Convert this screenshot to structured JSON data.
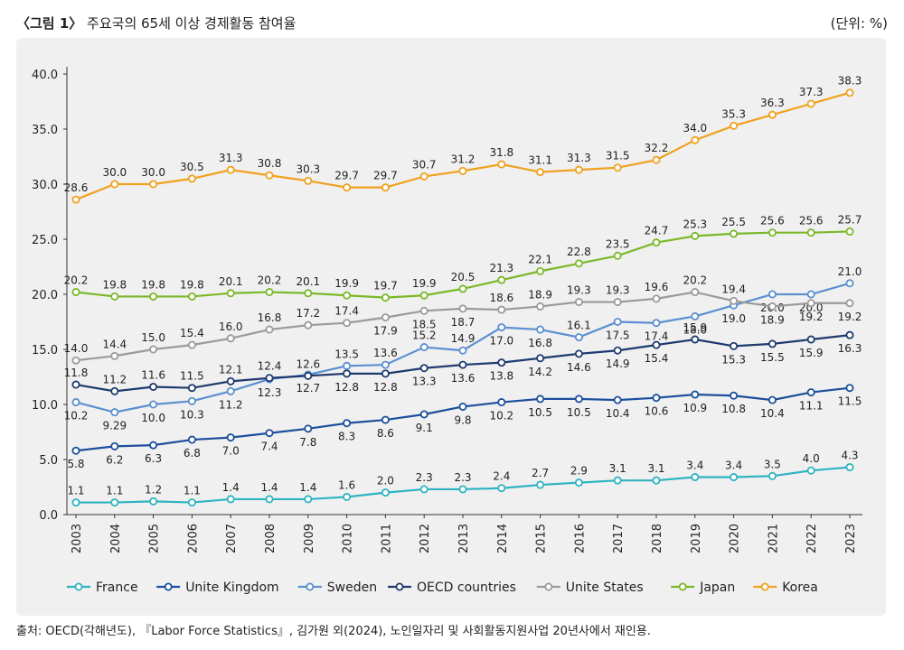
{
  "header": {
    "figure_tag": "〈그림 1〉",
    "title": "주요국의 65세 이상 경제활동 참여율",
    "unit": "(단위: %)"
  },
  "source": "출처: OECD(각해년도), 『Labor Force Statistics』, 김가원 외(2024), 노인일자리 및 사회활동지원사업 20년사에서 재인용.",
  "chart_data": {
    "type": "line",
    "title": "주요국의 65세 이상 경제활동 참여율",
    "xlabel": "",
    "ylabel": "",
    "ylim": [
      0,
      40
    ],
    "yticks": [
      "0.0",
      "5.0",
      "10.0",
      "15.0",
      "20.0",
      "25.0",
      "30.0",
      "35.0",
      "40.0"
    ],
    "grid": false,
    "legend": "bottom",
    "categories": [
      "2003",
      "2004",
      "2005",
      "2006",
      "2007",
      "2008",
      "2009",
      "2010",
      "2011",
      "2012",
      "2013",
      "2014",
      "2015",
      "2016",
      "2017",
      "2018",
      "2019",
      "2020",
      "2021",
      "2022",
      "2023"
    ],
    "series": [
      {
        "name": "France",
        "color": "#2fb3c2",
        "label_pos": "above",
        "values": [
          1.1,
          1.1,
          1.2,
          1.1,
          1.4,
          1.4,
          1.4,
          1.6,
          2.0,
          2.3,
          2.3,
          2.4,
          2.7,
          2.9,
          3.1,
          3.1,
          3.4,
          3.4,
          3.5,
          4.0,
          4.3
        ]
      },
      {
        "name": "Unite Kingdom",
        "color": "#1c4f9c",
        "label_pos": "below",
        "values": [
          5.8,
          6.2,
          6.3,
          6.8,
          7.0,
          7.4,
          7.8,
          8.3,
          8.6,
          9.1,
          9.8,
          10.2,
          10.5,
          10.5,
          10.4,
          10.6,
          10.9,
          10.8,
          10.4,
          11.1,
          11.5
        ]
      },
      {
        "name": "Sweden",
        "color": "#5b8fd0",
        "label_pos": "mixed",
        "values": [
          10.2,
          9.29,
          10.0,
          10.3,
          11.2,
          12.3,
          12.7,
          13.5,
          13.6,
          15.2,
          14.9,
          17.0,
          16.8,
          16.1,
          17.5,
          17.4,
          18.0,
          19.0,
          20.0,
          20.0,
          21.0
        ]
      },
      {
        "name": "OECD countries",
        "color": "#1e3a6e",
        "label_pos": "mixed",
        "values": [
          11.8,
          11.2,
          11.6,
          11.5,
          12.1,
          12.4,
          12.6,
          12.8,
          12.8,
          13.3,
          13.6,
          13.8,
          14.2,
          14.6,
          14.9,
          15.4,
          15.9,
          15.3,
          15.5,
          15.9,
          16.3
        ]
      },
      {
        "name": "Unite States",
        "color": "#9a9a9a",
        "label_pos": "mixed",
        "values": [
          14.0,
          14.4,
          15.0,
          15.4,
          16.0,
          16.8,
          17.2,
          17.4,
          17.9,
          18.5,
          18.7,
          18.6,
          18.9,
          19.3,
          19.3,
          19.6,
          20.2,
          19.4,
          18.9,
          19.2,
          19.2
        ]
      },
      {
        "name": "Japan",
        "color": "#7ab828",
        "label_pos": "above",
        "values": [
          20.2,
          19.8,
          19.8,
          19.8,
          20.1,
          20.2,
          20.1,
          19.9,
          19.7,
          19.9,
          20.5,
          21.3,
          22.1,
          22.8,
          23.5,
          24.7,
          25.3,
          25.5,
          25.6,
          25.6,
          25.7
        ]
      },
      {
        "name": "Korea",
        "color": "#f0a11e",
        "label_pos": "above",
        "values": [
          28.6,
          30.0,
          30.0,
          30.5,
          31.3,
          30.8,
          30.3,
          29.7,
          29.7,
          30.7,
          31.2,
          31.8,
          31.1,
          31.3,
          31.5,
          32.2,
          34.0,
          35.3,
          36.3,
          37.3,
          38.3
        ]
      }
    ]
  }
}
